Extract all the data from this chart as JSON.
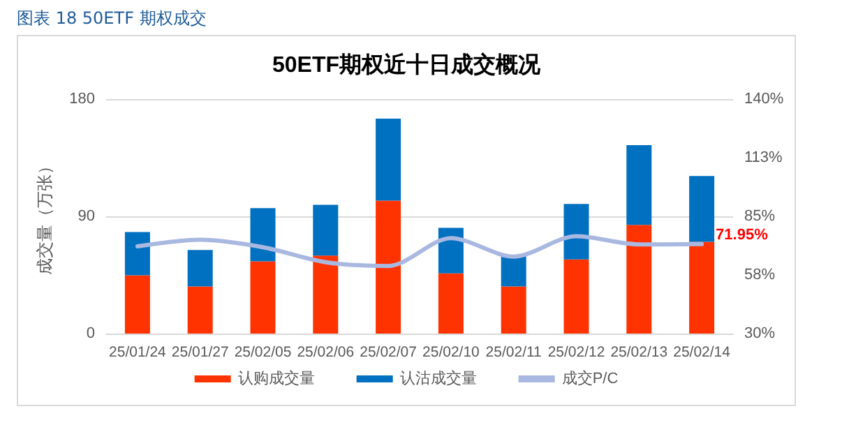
{
  "chart_data": {
    "type": "bar",
    "title": "50ETF期权近十日成交概况",
    "annotations": [
      "图表 18 50ETF 期权成交"
    ],
    "ylabel": "成交量（万张）",
    "categories": [
      "25/01/24",
      "25/01/27",
      "25/02/05",
      "25/02/06",
      "25/02/07",
      "25/02/10",
      "25/02/11",
      "25/02/12",
      "25/02/13",
      "25/02/14"
    ],
    "stacked": true,
    "series": [
      {
        "name": "认购成交量",
        "color": "#ff3300",
        "values": [
          44.7,
          36.1,
          55.5,
          59.8,
          102,
          46.2,
          36.1,
          56.9,
          83.4,
          70.5
        ]
      },
      {
        "name": "认沽成交量",
        "color": "#0070c0",
        "values": [
          33.3,
          28,
          40.8,
          39,
          63,
          35,
          24,
          42.6,
          61.2,
          50.5
        ]
      },
      {
        "name": "成交P/C",
        "type": "line",
        "axis": "y2",
        "color": "#a9b8e0",
        "values": [
          70.9,
          74,
          70.5,
          63.5,
          61.7,
          74.8,
          66.1,
          75.7,
          71.8,
          71.95
        ],
        "value_labels": [
          null,
          null,
          null,
          null,
          null,
          null,
          null,
          null,
          null,
          "71.95%"
        ]
      }
    ],
    "ylim": [
      0,
      180
    ],
    "yticks": [
      0,
      90,
      180
    ],
    "y2lim": [
      30,
      140
    ],
    "y2ticks": [
      {
        "value": 30,
        "label": "30%"
      },
      {
        "value": 57.5,
        "label": "58%"
      },
      {
        "value": 85,
        "label": "85%"
      },
      {
        "value": 112.5,
        "label": "113%"
      },
      {
        "value": 140,
        "label": "140%"
      }
    ],
    "grid": "y",
    "legend": "bottom",
    "marker": "none",
    "line_style": "solid"
  }
}
